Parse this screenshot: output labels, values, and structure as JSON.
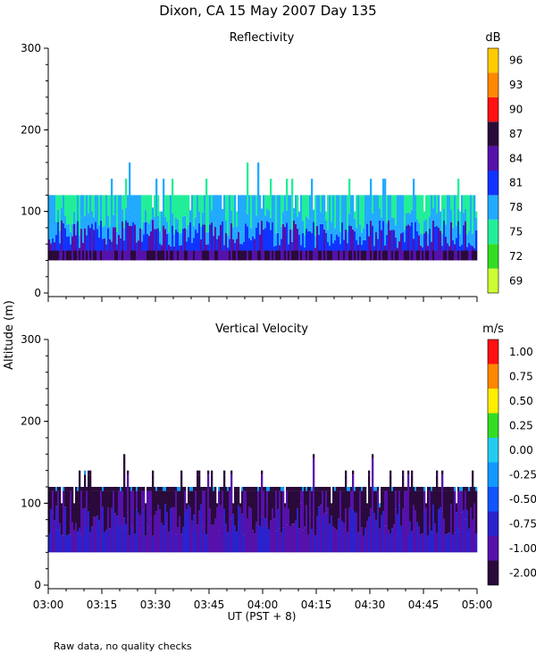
{
  "title": "Dixon, CA 15 May 2007  Day 135",
  "footnote": "Raw data, no quality checks",
  "shared_ylabel": "Altitude (m)",
  "xlabel": "UT  (PST + 8)",
  "x_ticks": [
    "03:00",
    "03:15",
    "03:30",
    "03:45",
    "04:00",
    "04:15",
    "04:30",
    "04:45",
    "05:00"
  ],
  "chart_data": [
    {
      "type": "heatmap",
      "title": "Reflectivity",
      "x_range": [
        "03:00",
        "05:00"
      ],
      "ylim": [
        0,
        300
      ],
      "y_ticks": [
        "0",
        "100",
        "200",
        "300"
      ],
      "colorbar": {
        "units": "dB",
        "labels": [
          "69",
          "72",
          "75",
          "78",
          "81",
          "84",
          "87",
          "90",
          "93",
          "96"
        ],
        "colors": [
          "#ccff33",
          "#33dd22",
          "#22ee99",
          "#22aaff",
          "#1133ff",
          "#5511aa",
          "#2a0a3a",
          "#ff1111",
          "#ff8800",
          "#ffcc00"
        ]
      },
      "description_values": {
        "echo_base_m": 40,
        "echo_top_typical_m": 120,
        "echo_top_max_m": 160,
        "dominant_low_layer_dB": [
          81,
          87
        ],
        "upper_layer_dB": [
          75,
          78
        ]
      }
    },
    {
      "type": "heatmap",
      "title": "Vertical Velocity",
      "x_range": [
        "03:00",
        "05:00"
      ],
      "ylim": [
        0,
        300
      ],
      "y_ticks": [
        "0",
        "100",
        "200",
        "300"
      ],
      "colorbar": {
        "units": "m/s",
        "labels": [
          "-2.00",
          "-1.00",
          "-0.75",
          "-0.50",
          "-0.25",
          "0.00",
          "0.25",
          "0.50",
          "0.75",
          "1.00"
        ],
        "colors": [
          "#2a0a3a",
          "#5511aa",
          "#2a22cc",
          "#1155ff",
          "#1199ff",
          "#22ccee",
          "#33dd22",
          "#ffee00",
          "#ff8800",
          "#ff1111"
        ]
      },
      "description_values": {
        "echo_base_m": 40,
        "echo_top_typical_m": 120,
        "echo_top_max_m": 160,
        "dominant_velocity_m_s": [
          -2.0,
          -0.75
        ]
      }
    }
  ]
}
